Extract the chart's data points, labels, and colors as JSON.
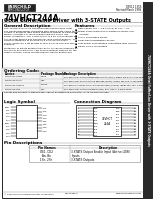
{
  "bg_color": "#ffffff",
  "sidebar_text": "74VHCT244A Octal Buffer/Line Driver with 3-STATE Outputs",
  "title_main": "74VHCT244A",
  "title_sub": "Octal Buffer/Line Driver with 3-STATE Outputs",
  "doc_num": "DS011 1355",
  "doc_date": "Revised March 1998",
  "section_general": "General Description",
  "section_features": "Features",
  "general_text1": [
    "The 74VHCT244A is an advanced high speed CMOS octet",
    "bus transceiver/buffer fabricated with silicon gate CMOS tech-",
    "nology. It achieves high speed operation similar to equivalent",
    "Bipolar Schottky TTL while maintaining the CMOS low",
    "power dissipation. The 74VHCT244A is a 5V non-inverting 3-",
    "STATE octet driving bus transceiver (non-output-enable). The",
    "device is designed to be used as a 3-STATE Octal Bus",
    "driver, using two 4-bit groups of four 3-STATE one-way bus",
    "receivers."
  ],
  "general_text2": [
    "Protection of inputs greater than 8V to 7V can be achieved by",
    "the use of an input filter. This is done without support for the",
    "supply voltage. These circuits prevent device destruction"
  ],
  "features_text": [
    "High Speed: tpd = 3.8 ns (typ) at VCC = 5V",
    "Power down protection provided on inputs and",
    "  outputs",
    "LVTTL compatible inputs",
    "Equivalent propagation delays",
    "Low power consumption compatible with HCMOS",
    "Direct CMOS compatible"
  ],
  "section_ordering": "Ordering Code:",
  "ordering_headers": [
    "Device",
    "Package Number",
    "Package Description"
  ],
  "ordering_rows": [
    [
      "74VHCT244AWM",
      "M20B",
      "20-Lead Small Outline Integrated Circuit (SOIC), JEDEC MS-013, 0.150 Wide"
    ],
    [
      "74VHCT244ASJX",
      "MFP",
      "20-Lead Small Shrink Outline Package (SSOP), JEDEC MO-150, 0.150 Wide"
    ],
    [
      "74VHCT244AMTCX",
      "MTC20",
      "20-Lead Thin Shrink Small Outline Package (TSSOP), JEDEC MO-153, 4.4mm Wide"
    ],
    [
      "74VHCT244AM",
      "MSA",
      "20-Lead Small Outline Package (SOP), EIAJ TYPE II, 5.3mm Wide"
    ]
  ],
  "ordering_note": "Devices also available in Tape and Reel. Specify by appending suffix letter \"X\" to the ordering code.",
  "section_logic": "Logic Symbol",
  "section_connection": "Connection Diagram",
  "logic_pins_left": [
    "1OE",
    "1A1",
    "1A2",
    "1A3",
    "1A4",
    "2OE",
    "2A1",
    "2A2",
    "2A3",
    "2A4"
  ],
  "logic_pins_right": [
    "1Y1",
    "1Y2",
    "1Y3",
    "1Y4",
    "2Y1",
    "2Y2",
    "2Y3",
    "2Y4"
  ],
  "conn_pins_left": [
    "1",
    "2",
    "3",
    "4",
    "5",
    "6",
    "7",
    "8",
    "9",
    "10"
  ],
  "conn_pins_right": [
    "20",
    "19",
    "18",
    "17",
    "16",
    "15",
    "14",
    "13",
    "12",
    "11"
  ],
  "conn_labels_left": [
    "1OE",
    "1A1",
    "1A2",
    "1A3",
    "1A4",
    "GND",
    "2A4",
    "2A3",
    "2A2",
    "2A1"
  ],
  "conn_labels_right": [
    "VCC",
    "2OE",
    "2Y4",
    "2Y3",
    "2Y2",
    "2Y1",
    "1Y4",
    "1Y3",
    "1Y2",
    "1Y1"
  ],
  "section_pin": "Pin Descriptions",
  "pin_headers": [
    "Pin Names",
    "Description"
  ],
  "pin_rows": [
    [
      "OE1, OE2",
      "3-STATE Output Enable Input (Active LOW)"
    ],
    [
      "An, Bn",
      "Inputs"
    ],
    [
      "1Yn, 2Yn",
      "3-STATE Outputs"
    ]
  ],
  "footer_text": "© 2000 Fairchild Semiconductor Corporation",
  "footer_ds": "DS011355.3",
  "footer_web": "www.fairchildsemi.com"
}
